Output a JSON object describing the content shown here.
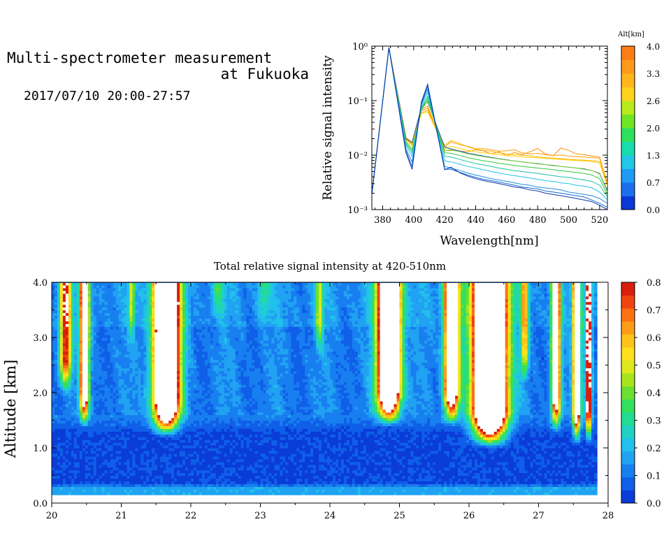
{
  "header": {
    "title_line1": "Multi-spectrometer measurement",
    "title_line2": "at Fukuoka",
    "datetime": "2017/07/10 20:00-27:57"
  },
  "chart_data": [
    {
      "type": "line",
      "xlabel": "Wavelength[nm]",
      "ylabel": "Relative signal intensity",
      "yscale": "log",
      "xlim": [
        373,
        525
      ],
      "ylim": [
        0.001,
        1
      ],
      "x_ticks": [
        "380",
        "400",
        "420",
        "440",
        "460",
        "480",
        "500",
        "520"
      ],
      "y_ticks": [
        "10⁻³",
        "10⁻²",
        "10⁻¹",
        "10⁰"
      ],
      "colorbar": {
        "title": "Alt[km]",
        "ticks": [
          "0.0",
          "0.7",
          "1.3",
          "2.0",
          "2.6",
          "3.3",
          "4.0"
        ],
        "colors": [
          "#0a37d6",
          "#1b6fef",
          "#1f9af3",
          "#22c6e6",
          "#18dcae",
          "#2fe05c",
          "#6fe624",
          "#b8ea1c",
          "#ffd21c",
          "#ffb61c",
          "#ff9a1c",
          "#ff7d14"
        ]
      },
      "series": [
        {
          "color": "#ff8c00",
          "x": [
            373,
            384,
            395,
            399,
            405,
            409,
            420,
            424,
            430,
            435,
            440,
            445,
            450,
            455,
            460,
            465,
            470,
            475,
            480,
            485,
            490,
            495,
            500,
            505,
            510,
            515,
            520,
            525
          ],
          "y": [
            0.0019,
            0.94,
            0.021,
            0.017,
            0.068,
            0.08,
            0.012,
            0.0122,
            0.0118,
            0.0115,
            0.0125,
            0.012,
            0.0105,
            0.0115,
            0.0098,
            0.0112,
            0.0102,
            0.0115,
            0.0132,
            0.0105,
            0.0097,
            0.0135,
            0.0122,
            0.0105,
            0.0102,
            0.0096,
            0.0092,
            0.003
          ]
        },
        {
          "color": "#ffa000",
          "x": [
            373,
            384,
            395,
            399,
            405,
            409,
            420,
            424,
            430,
            435,
            440,
            445,
            450,
            455,
            460,
            465,
            470,
            475,
            480,
            485,
            490,
            495,
            500,
            505,
            510,
            515,
            520,
            525
          ],
          "y": [
            0.0019,
            0.94,
            0.021,
            0.016,
            0.065,
            0.072,
            0.014,
            0.0175,
            0.0155,
            0.0145,
            0.013,
            0.0132,
            0.0125,
            0.0118,
            0.012,
            0.0125,
            0.011,
            0.0105,
            0.0108,
            0.0102,
            0.0098,
            0.0101,
            0.0096,
            0.0094,
            0.0092,
            0.009,
            0.0088,
            0.003
          ]
        },
        {
          "color": "#ffb400",
          "x": [
            373,
            384,
            395,
            399,
            405,
            409,
            420,
            424,
            430,
            435,
            440,
            445,
            450,
            455,
            460,
            465,
            470,
            475,
            480,
            485,
            490,
            495,
            500,
            505,
            510,
            515,
            520,
            525
          ],
          "y": [
            0.0019,
            0.94,
            0.02,
            0.015,
            0.06,
            0.066,
            0.015,
            0.0185,
            0.0162,
            0.0142,
            0.0128,
            0.0122,
            0.0118,
            0.0111,
            0.0105,
            0.0102,
            0.0099,
            0.0097,
            0.0093,
            0.009,
            0.0088,
            0.0086,
            0.0084,
            0.0082,
            0.0081,
            0.0079,
            0.0076,
            0.0028
          ]
        },
        {
          "color": "#ffd000",
          "x": [
            373,
            384,
            395,
            399,
            405,
            409,
            420,
            424,
            430,
            435,
            440,
            445,
            450,
            455,
            460,
            465,
            470,
            475,
            480,
            485,
            490,
            495,
            500,
            505,
            510,
            515,
            520,
            525
          ],
          "y": [
            0.0019,
            0.94,
            0.019,
            0.015,
            0.058,
            0.062,
            0.013,
            0.0145,
            0.0132,
            0.0122,
            0.0115,
            0.011,
            0.0106,
            0.0102,
            0.0098,
            0.0096,
            0.0093,
            0.0091,
            0.0089,
            0.0087,
            0.0085,
            0.0083,
            0.0081,
            0.008,
            0.0078,
            0.0076,
            0.0072,
            0.0027
          ]
        },
        {
          "color": "#1a4fb0",
          "x": [
            373,
            384,
            395,
            399,
            405,
            409,
            420,
            424,
            430,
            435,
            440,
            445,
            450,
            455,
            460,
            465,
            470,
            475,
            480,
            485,
            490,
            495,
            500,
            505,
            510,
            515,
            520,
            525
          ],
          "y": [
            0.0019,
            0.94,
            0.02,
            0.017,
            0.075,
            0.095,
            0.014,
            0.013,
            0.0118,
            0.0108,
            0.0102,
            0.0096,
            0.0091,
            0.0086,
            0.0082,
            0.0078,
            0.0075,
            0.0072,
            0.007,
            0.0067,
            0.0065,
            0.0062,
            0.006,
            0.0058,
            0.0056,
            0.0052,
            0.0046,
            0.0022
          ]
        },
        {
          "color": "#7cd82c",
          "x": [
            373,
            384,
            395,
            399,
            405,
            409,
            420,
            424,
            430,
            435,
            440,
            445,
            450,
            455,
            460,
            465,
            470,
            475,
            480,
            485,
            490,
            495,
            500,
            505,
            510,
            515,
            520,
            525
          ],
          "y": [
            0.0019,
            0.94,
            0.018,
            0.013,
            0.066,
            0.1,
            0.012,
            0.0125,
            0.0115,
            0.0105,
            0.0099,
            0.0094,
            0.0089,
            0.0085,
            0.0081,
            0.0078,
            0.0075,
            0.0072,
            0.0069,
            0.0067,
            0.0064,
            0.0062,
            0.006,
            0.0058,
            0.0055,
            0.0052,
            0.0045,
            0.0021
          ]
        },
        {
          "color": "#2fc93d",
          "x": [
            373,
            384,
            395,
            399,
            405,
            409,
            420,
            424,
            430,
            435,
            440,
            445,
            450,
            455,
            460,
            465,
            470,
            475,
            480,
            485,
            490,
            495,
            500,
            505,
            510,
            515,
            520,
            525
          ],
          "y": [
            0.0019,
            0.94,
            0.017,
            0.012,
            0.07,
            0.11,
            0.011,
            0.0108,
            0.0098,
            0.009,
            0.0084,
            0.0079,
            0.0075,
            0.0071,
            0.0068,
            0.0065,
            0.0062,
            0.006,
            0.0058,
            0.0056,
            0.0054,
            0.0052,
            0.005,
            0.0048,
            0.0046,
            0.0043,
            0.0037,
            0.0019
          ]
        },
        {
          "color": "#16c4a0",
          "x": [
            373,
            384,
            395,
            399,
            405,
            409,
            420,
            424,
            430,
            435,
            440,
            445,
            450,
            455,
            460,
            465,
            470,
            475,
            480,
            485,
            490,
            495,
            500,
            505,
            510,
            515,
            520,
            525
          ],
          "y": [
            0.0019,
            0.94,
            0.016,
            0.011,
            0.074,
            0.12,
            0.0095,
            0.0092,
            0.0083,
            0.0076,
            0.007,
            0.0066,
            0.0062,
            0.0058,
            0.0055,
            0.0052,
            0.005,
            0.0048,
            0.0046,
            0.0044,
            0.0042,
            0.004,
            0.0039,
            0.0037,
            0.0035,
            0.0033,
            0.0028,
            0.0017
          ]
        },
        {
          "color": "#22c4e6",
          "x": [
            373,
            384,
            395,
            399,
            405,
            409,
            420,
            424,
            430,
            435,
            440,
            445,
            450,
            455,
            460,
            465,
            470,
            475,
            480,
            485,
            490,
            495,
            500,
            505,
            510,
            515,
            520,
            525
          ],
          "y": [
            0.0019,
            0.94,
            0.015,
            0.0095,
            0.08,
            0.14,
            0.0078,
            0.0075,
            0.0068,
            0.0062,
            0.0058,
            0.0054,
            0.005,
            0.0047,
            0.0044,
            0.0042,
            0.004,
            0.0038,
            0.0036,
            0.0034,
            0.0033,
            0.0031,
            0.003,
            0.0028,
            0.0027,
            0.0025,
            0.0021,
            0.0015
          ]
        },
        {
          "color": "#1f8fe0",
          "x": [
            373,
            384,
            395,
            399,
            405,
            409,
            420,
            424,
            430,
            435,
            440,
            445,
            450,
            455,
            460,
            465,
            470,
            475,
            480,
            485,
            490,
            495,
            500,
            505,
            510,
            515,
            520,
            525
          ],
          "y": [
            0.0019,
            0.94,
            0.013,
            0.0075,
            0.085,
            0.16,
            0.0062,
            0.0058,
            0.0052,
            0.0047,
            0.0043,
            0.004,
            0.0037,
            0.0035,
            0.0033,
            0.0031,
            0.0029,
            0.0028,
            0.0026,
            0.0025,
            0.0024,
            0.0023,
            0.0021,
            0.002,
            0.0019,
            0.0018,
            0.0016,
            0.0013
          ]
        },
        {
          "color": "#1565cc",
          "x": [
            373,
            384,
            395,
            399,
            405,
            409,
            420,
            424,
            430,
            435,
            440,
            445,
            450,
            455,
            460,
            465,
            470,
            475,
            480,
            485,
            490,
            495,
            500,
            505,
            510,
            515,
            520,
            525
          ],
          "y": [
            0.0019,
            0.94,
            0.012,
            0.0062,
            0.09,
            0.18,
            0.0055,
            0.0055,
            0.0048,
            0.0043,
            0.0039,
            0.0036,
            0.0034,
            0.0032,
            0.003,
            0.0028,
            0.0026,
            0.0025,
            0.0024,
            0.0022,
            0.0021,
            0.002,
            0.0019,
            0.0018,
            0.0017,
            0.0015,
            0.0013,
            0.0011
          ]
        },
        {
          "color": "#0a37a8",
          "x": [
            373,
            384,
            395,
            399,
            405,
            409,
            420,
            424,
            430,
            435,
            440,
            445,
            450,
            455,
            460,
            465,
            470,
            475,
            480,
            485,
            490,
            495,
            500,
            505,
            510,
            515,
            520,
            525
          ],
          "y": [
            0.0019,
            0.94,
            0.011,
            0.0055,
            0.095,
            0.2,
            0.0054,
            0.006,
            0.0047,
            0.0041,
            0.0037,
            0.0034,
            0.0032,
            0.003,
            0.0028,
            0.0026,
            0.0025,
            0.0023,
            0.0022,
            0.002,
            0.0019,
            0.0018,
            0.0017,
            0.0016,
            0.0015,
            0.0014,
            0.0012,
            0.001
          ]
        }
      ]
    },
    {
      "type": "heatmap",
      "title": "Total relative signal intensity at 420-510nm",
      "xlabel": "",
      "ylabel": "Altitude [km]",
      "xlim": [
        20,
        28
      ],
      "ylim": [
        0,
        4
      ],
      "x_ticks": [
        "20",
        "21",
        "22",
        "23",
        "24",
        "25",
        "26",
        "27",
        "28"
      ],
      "y_ticks": [
        "0.0",
        "1.0",
        "2.0",
        "3.0",
        "4.0"
      ],
      "data_x_range": [
        20,
        27.8
      ],
      "data_y_range": [
        0.15,
        4.0
      ],
      "colorbar": {
        "ticks": [
          "0.0",
          "0.1",
          "0.2",
          "0.3",
          "0.4",
          "0.5",
          "0.6",
          "0.7",
          "0.8"
        ],
        "vmin": 0,
        "vmax": 0.8,
        "colors": [
          "#0a3cd8",
          "#0f5fe8",
          "#187ff0",
          "#21a2f2",
          "#22c0ec",
          "#1fd2c4",
          "#22dc92",
          "#35e05c",
          "#6be030",
          "#a8e41e",
          "#dce81c",
          "#ffe01c",
          "#ffc21a",
          "#ff9c18",
          "#ff7214",
          "#f04410",
          "#d81e0c"
        ],
        "over_color": "#ffffff"
      },
      "plumes": [
        {
          "t": 20.2,
          "w": 0.08,
          "zb": 2.3,
          "peak": 0.7
        },
        {
          "t": 20.47,
          "w": 0.06,
          "zb": 1.7,
          "peak": 1.0
        },
        {
          "t": 21.15,
          "w": 0.04,
          "zb": 3.2,
          "peak": 0.35
        },
        {
          "t": 21.65,
          "w": 0.17,
          "zb": 1.55,
          "peak": 1.6
        },
        {
          "t": 22.4,
          "w": 0.08,
          "zb": 3.6,
          "peak": 0.2
        },
        {
          "t": 23.05,
          "w": 0.08,
          "zb": 3.5,
          "peak": 0.18
        },
        {
          "t": 23.85,
          "w": 0.05,
          "zb": 3.0,
          "peak": 0.35
        },
        {
          "t": 24.85,
          "w": 0.15,
          "zb": 1.75,
          "peak": 1.6
        },
        {
          "t": 25.75,
          "w": 0.1,
          "zb": 1.75,
          "peak": 1.2
        },
        {
          "t": 26.3,
          "w": 0.22,
          "zb": 1.35,
          "peak": 1.8
        },
        {
          "t": 26.8,
          "w": 0.05,
          "zb": 2.5,
          "peak": 0.5
        },
        {
          "t": 27.25,
          "w": 0.06,
          "zb": 1.6,
          "peak": 0.95
        },
        {
          "t": 27.55,
          "w": 0.05,
          "zb": 1.4,
          "peak": 1.1
        },
        {
          "t": 27.72,
          "w": 0.04,
          "zb": 1.4,
          "peak": 0.9
        }
      ]
    }
  ]
}
